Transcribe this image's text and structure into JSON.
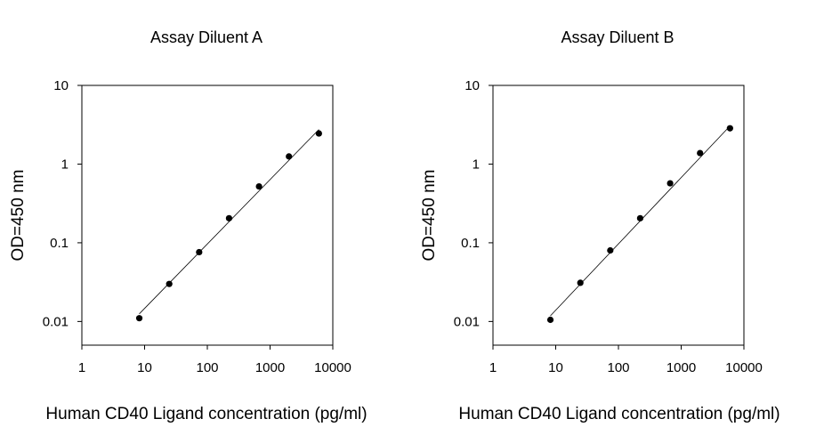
{
  "chart_data": [
    {
      "type": "scatter",
      "title": "Assay Diluent A",
      "xlabel": "Human CD40 Ligand concentration (pg/ml)",
      "ylabel": "OD=450 nm",
      "xscale": "log",
      "yscale": "log",
      "xlim": [
        1,
        10000
      ],
      "ylim": [
        0.005,
        10
      ],
      "x_ticks": [
        "1",
        "10",
        "100",
        "1000",
        "10000"
      ],
      "y_ticks": [
        "0.01",
        "0.1",
        "1",
        "10"
      ],
      "grid": false,
      "points": {
        "x": [
          8.23,
          24.7,
          74.1,
          222,
          667,
          2000,
          6000
        ],
        "y": [
          0.011,
          0.03,
          0.076,
          0.205,
          0.52,
          1.25,
          2.45
        ]
      },
      "fit_line": {
        "x": [
          8.23,
          6000
        ],
        "y": [
          0.0125,
          2.75
        ]
      }
    },
    {
      "type": "scatter",
      "title": "Assay Diluent B",
      "xlabel": "Human CD40 Ligand concentration (pg/ml)",
      "ylabel": "OD=450 nm",
      "xscale": "log",
      "yscale": "log",
      "xlim": [
        1,
        10000
      ],
      "ylim": [
        0.005,
        10
      ],
      "x_ticks": [
        "1",
        "10",
        "100",
        "1000",
        "10000"
      ],
      "y_ticks": [
        "0.01",
        "0.1",
        "1",
        "10"
      ],
      "grid": false,
      "points": {
        "x": [
          8.23,
          24.7,
          74.1,
          222,
          667,
          2000,
          6000
        ],
        "y": [
          0.0105,
          0.031,
          0.08,
          0.205,
          0.57,
          1.38,
          2.85
        ]
      },
      "fit_line": {
        "x": [
          8.23,
          6000
        ],
        "y": [
          0.0118,
          3.05
        ]
      }
    }
  ]
}
